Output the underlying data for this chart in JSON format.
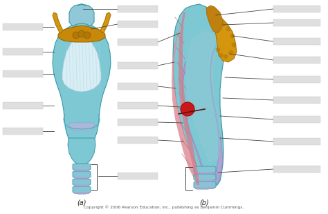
{
  "bg_color": "#ffffff",
  "figure_bg": "#ffffff",
  "label_a": "(a)",
  "label_b": "(b)",
  "copyright": "Copyright © 2006 Pearson Education, Inc., publishing as Benjamin Cummings.",
  "blank_box_color": "#cccccc",
  "line_color": "#444444",
  "teal_light": "#a8d8e0",
  "teal_main": "#7ec8d4",
  "teal_dark": "#5ab0c0",
  "teal_edge": "#3a98a8",
  "gold": "#d4960e",
  "gold_dark": "#a07008",
  "pink_main": "#e890a0",
  "pink_dark": "#c06070",
  "pink_muscle": "#d87888",
  "purple_light": "#c0a8d8",
  "purple_main": "#a888c8",
  "red_spot": "#cc2020",
  "lavender": "#d0b8e8",
  "white_inner": "#e8f4f8",
  "stripe_color": "#b8dce8"
}
